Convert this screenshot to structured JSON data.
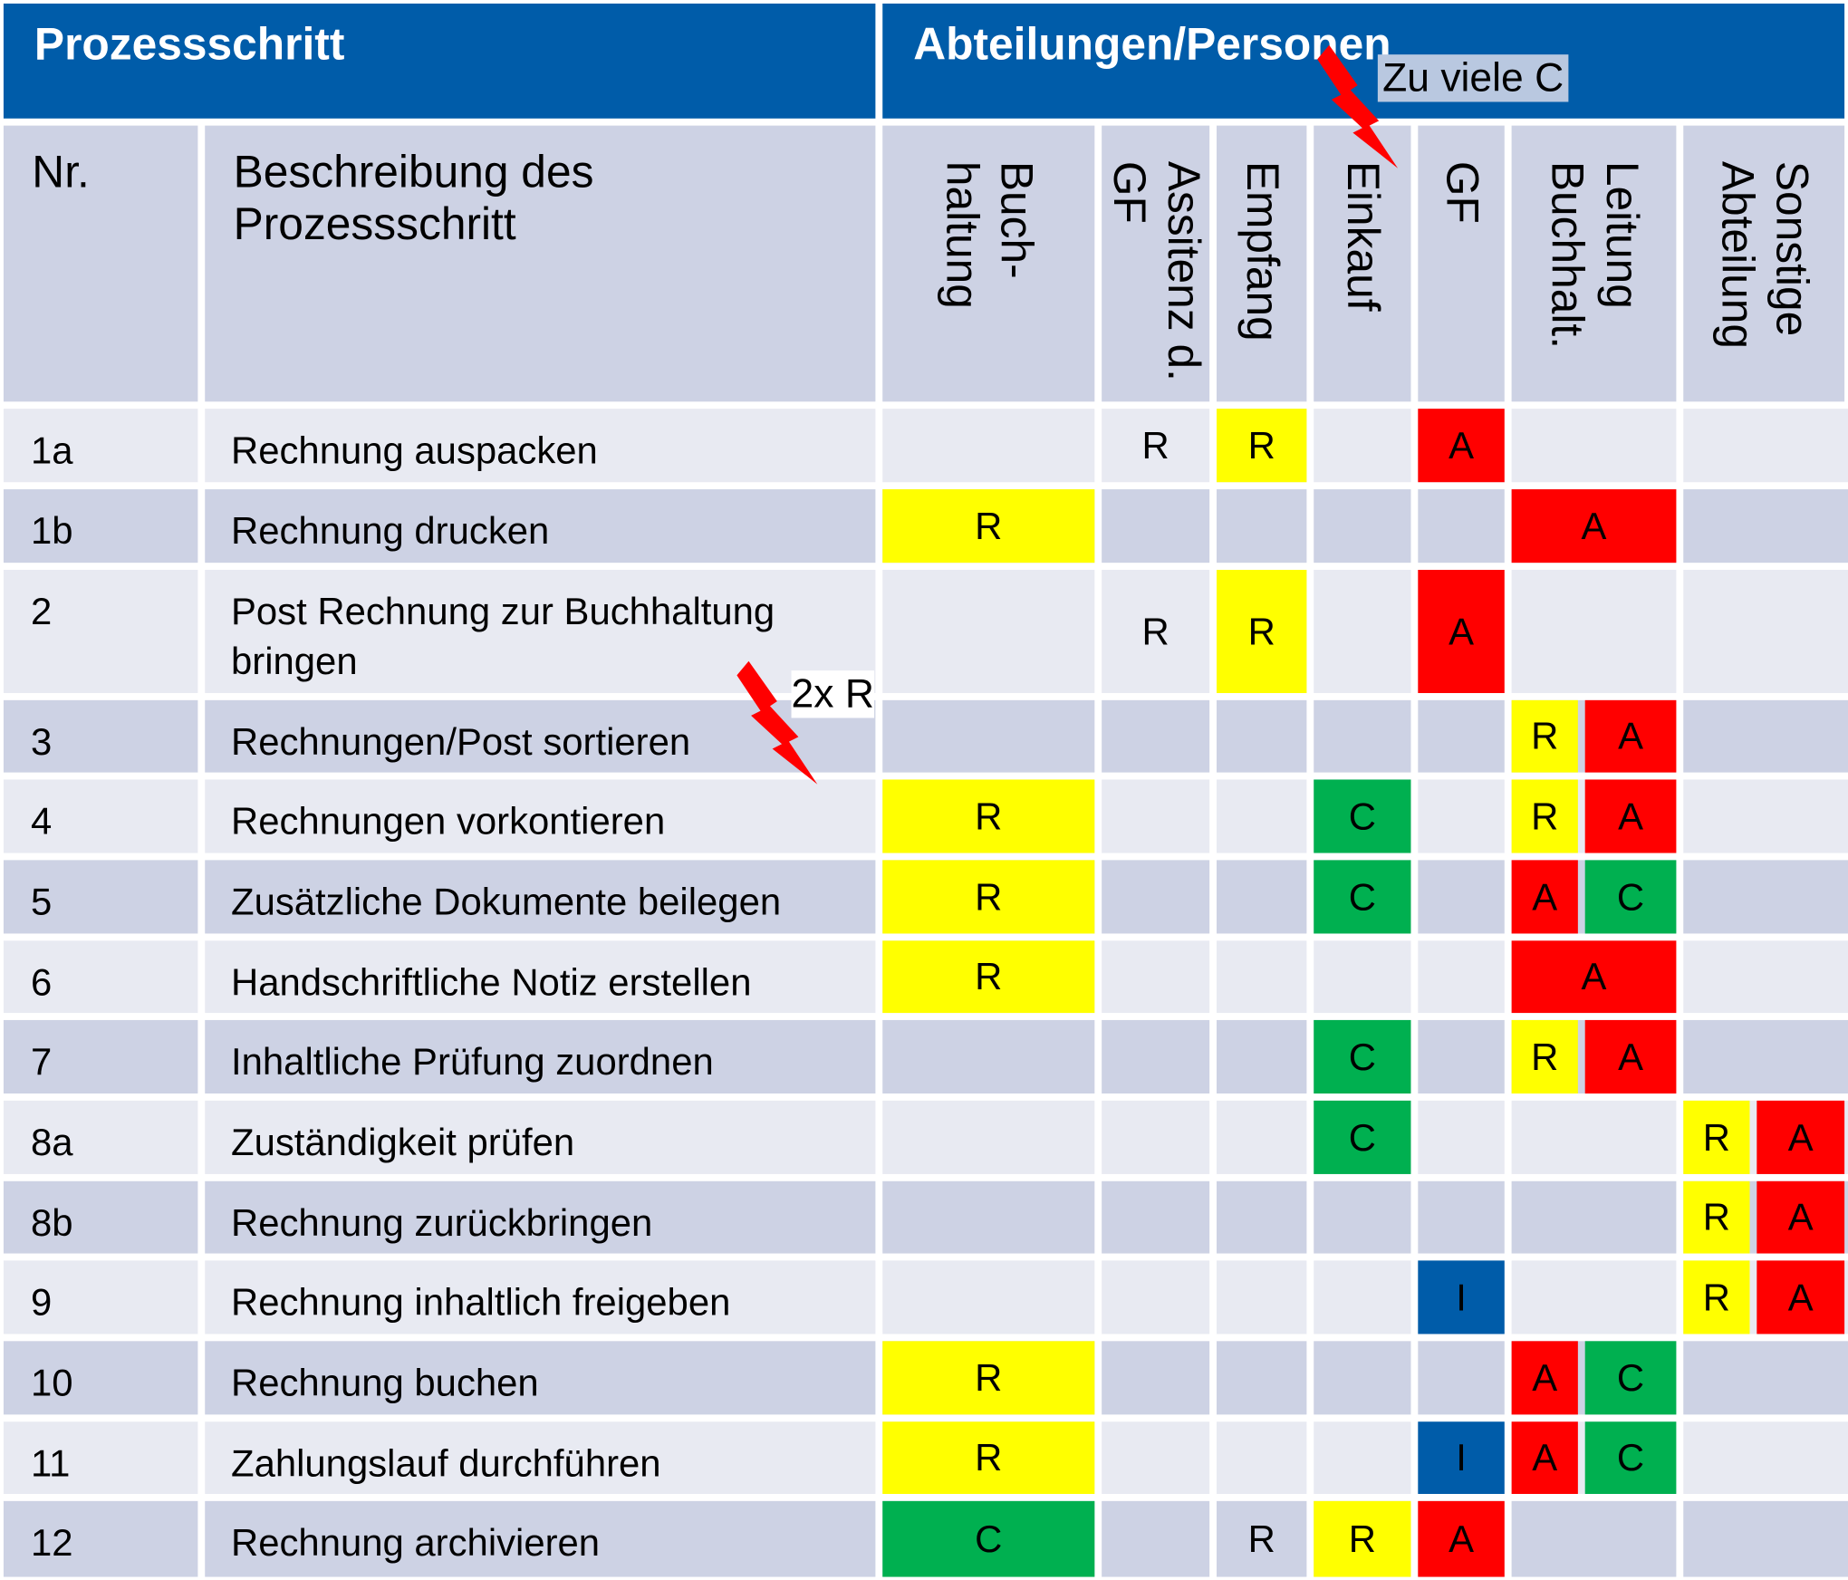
{
  "header": {
    "left_title": "Prozessschritt",
    "right_title": "Abteilungen/Personen"
  },
  "subheader": {
    "nr_label": "Nr.",
    "desc_label": "Beschreibung des Prozessschritt"
  },
  "columns": [
    {
      "id": "buchhaltung",
      "label_lines": [
        "Buch-",
        "haltung"
      ]
    },
    {
      "id": "assistenz",
      "label_lines": [
        "Assitenz d.",
        "GF"
      ]
    },
    {
      "id": "empfang",
      "label_lines": [
        "Empfang"
      ]
    },
    {
      "id": "einkauf",
      "label_lines": [
        "Einkauf"
      ]
    },
    {
      "id": "gf",
      "label_lines": [
        "GF"
      ]
    },
    {
      "id": "leitung",
      "label_lines": [
        "Leitung",
        "Buchhalt."
      ]
    },
    {
      "id": "sonstige",
      "label_lines": [
        "Sonstige",
        "Abteilung"
      ]
    }
  ],
  "colors": {
    "R": "#ffff00",
    "A": "#ff0000",
    "C": "#00b050",
    "I": "#005ca9",
    "header_bg": "#005ca9",
    "row_light": "#e8eaf2",
    "row_dark": "#cdd2e4"
  },
  "rows": [
    {
      "nr": "1a",
      "desc": "Rechnung auspacken"
    },
    {
      "nr": "1b",
      "desc": "Rechnung drucken"
    },
    {
      "nr": "2",
      "desc": "Post Rechnung zur Buchhaltung bringen"
    },
    {
      "nr": "3",
      "desc": "Rechnungen/Post sortieren"
    },
    {
      "nr": "4",
      "desc": "Rechnungen vorkontieren"
    },
    {
      "nr": "5",
      "desc": "Zusätzliche Dokumente beilegen"
    },
    {
      "nr": "6",
      "desc": "Handschriftliche Notiz erstellen"
    },
    {
      "nr": "7",
      "desc": "Inhaltliche Prüfung zuordnen"
    },
    {
      "nr": "8a",
      "desc": "Zuständigkeit prüfen"
    },
    {
      "nr": "8b",
      "desc": "Rechnung zurückbringen"
    },
    {
      "nr": "9",
      "desc": "Rechnung inhaltlich freigeben"
    },
    {
      "nr": "10",
      "desc": "Rechnung buchen"
    },
    {
      "nr": "11",
      "desc": "Zahlungslauf durchführen"
    },
    {
      "nr": "12",
      "desc": "Rechnung archivieren"
    }
  ],
  "assignments": [
    {
      "row": 0,
      "column": "assistenz",
      "part": "full",
      "letter": "R",
      "fill": false
    },
    {
      "row": 0,
      "column": "empfang",
      "part": "full",
      "letter": "R",
      "fill": true
    },
    {
      "row": 0,
      "column": "gf",
      "part": "full",
      "letter": "A",
      "fill": true
    },
    {
      "row": 1,
      "column": "buchhaltung",
      "part": "full",
      "letter": "R",
      "fill": true
    },
    {
      "row": 1,
      "column": "leitung",
      "part": "full",
      "letter": "A",
      "fill": true
    },
    {
      "row": 2,
      "column": "assistenz",
      "part": "full",
      "letter": "R",
      "fill": false
    },
    {
      "row": 2,
      "column": "empfang",
      "part": "full",
      "letter": "R",
      "fill": true
    },
    {
      "row": 2,
      "column": "gf",
      "part": "full",
      "letter": "A",
      "fill": true
    },
    {
      "row": 3,
      "column": "leitung",
      "part": "left",
      "letter": "R",
      "fill": true
    },
    {
      "row": 3,
      "column": "leitung",
      "part": "right",
      "letter": "A",
      "fill": true
    },
    {
      "row": 4,
      "column": "buchhaltung",
      "part": "full",
      "letter": "R",
      "fill": true
    },
    {
      "row": 4,
      "column": "einkauf",
      "part": "full",
      "letter": "C",
      "fill": true
    },
    {
      "row": 4,
      "column": "leitung",
      "part": "left",
      "letter": "R",
      "fill": true
    },
    {
      "row": 4,
      "column": "leitung",
      "part": "right",
      "letter": "A",
      "fill": true
    },
    {
      "row": 5,
      "column": "buchhaltung",
      "part": "full",
      "letter": "R",
      "fill": true
    },
    {
      "row": 5,
      "column": "einkauf",
      "part": "full",
      "letter": "C",
      "fill": true
    },
    {
      "row": 5,
      "column": "leitung",
      "part": "left",
      "letter": "A",
      "fill": true
    },
    {
      "row": 5,
      "column": "leitung",
      "part": "right",
      "letter": "C",
      "fill": true
    },
    {
      "row": 6,
      "column": "buchhaltung",
      "part": "full",
      "letter": "R",
      "fill": true
    },
    {
      "row": 6,
      "column": "leitung",
      "part": "full",
      "letter": "A",
      "fill": true
    },
    {
      "row": 7,
      "column": "einkauf",
      "part": "full",
      "letter": "C",
      "fill": true
    },
    {
      "row": 7,
      "column": "leitung",
      "part": "left",
      "letter": "R",
      "fill": true
    },
    {
      "row": 7,
      "column": "leitung",
      "part": "right",
      "letter": "A",
      "fill": true
    },
    {
      "row": 8,
      "column": "einkauf",
      "part": "full",
      "letter": "C",
      "fill": true
    },
    {
      "row": 8,
      "column": "sonstige",
      "part": "left",
      "letter": "R",
      "fill": true
    },
    {
      "row": 8,
      "column": "sonstige",
      "part": "right",
      "letter": "A",
      "fill": true
    },
    {
      "row": 9,
      "column": "sonstige",
      "part": "left",
      "letter": "R",
      "fill": true
    },
    {
      "row": 9,
      "column": "sonstige",
      "part": "right",
      "letter": "A",
      "fill": true
    },
    {
      "row": 10,
      "column": "gf",
      "part": "full",
      "letter": "I",
      "fill": true
    },
    {
      "row": 10,
      "column": "sonstige",
      "part": "left",
      "letter": "R",
      "fill": true
    },
    {
      "row": 10,
      "column": "sonstige",
      "part": "right",
      "letter": "A",
      "fill": true
    },
    {
      "row": 11,
      "column": "buchhaltung",
      "part": "full",
      "letter": "R",
      "fill": true
    },
    {
      "row": 11,
      "column": "leitung",
      "part": "left",
      "letter": "A",
      "fill": true
    },
    {
      "row": 11,
      "column": "leitung",
      "part": "right",
      "letter": "C",
      "fill": true
    },
    {
      "row": 12,
      "column": "buchhaltung",
      "part": "full",
      "letter": "R",
      "fill": true
    },
    {
      "row": 12,
      "column": "gf",
      "part": "full",
      "letter": "I",
      "fill": true
    },
    {
      "row": 12,
      "column": "leitung",
      "part": "left",
      "letter": "A",
      "fill": true
    },
    {
      "row": 12,
      "column": "leitung",
      "part": "right",
      "letter": "C",
      "fill": true
    },
    {
      "row": 13,
      "column": "buchhaltung",
      "part": "full",
      "letter": "C",
      "fill": true
    },
    {
      "row": 13,
      "column": "empfang",
      "part": "full",
      "letter": "R",
      "fill": false
    },
    {
      "row": 13,
      "column": "einkauf",
      "part": "full",
      "letter": "R",
      "fill": true
    },
    {
      "row": 13,
      "column": "gf",
      "part": "full",
      "letter": "A",
      "fill": true
    }
  ],
  "annotations": {
    "too_many_c": "Zu viele C",
    "two_r": "2x R"
  }
}
